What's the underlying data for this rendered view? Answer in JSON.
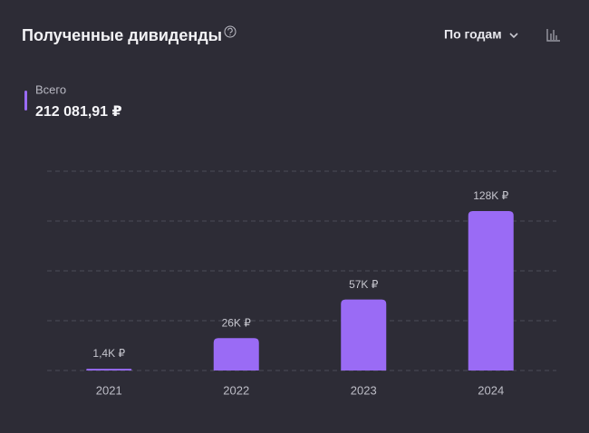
{
  "header": {
    "title": "Полученные дивиденды",
    "period": "По годам"
  },
  "total": {
    "label": "Всего",
    "value": "212 081,91 ₽"
  },
  "chart_data": {
    "type": "bar",
    "categories": [
      "2021",
      "2022",
      "2023",
      "2024"
    ],
    "values": [
      1.4,
      26,
      57,
      128
    ],
    "value_labels": [
      "1,4K ₽",
      "26K ₽",
      "57K ₽",
      "128K ₽"
    ],
    "color": "#9a6bf5",
    "ylim": [
      0,
      160
    ],
    "yticks": [
      0,
      40,
      80,
      120,
      160
    ],
    "grid": true
  }
}
